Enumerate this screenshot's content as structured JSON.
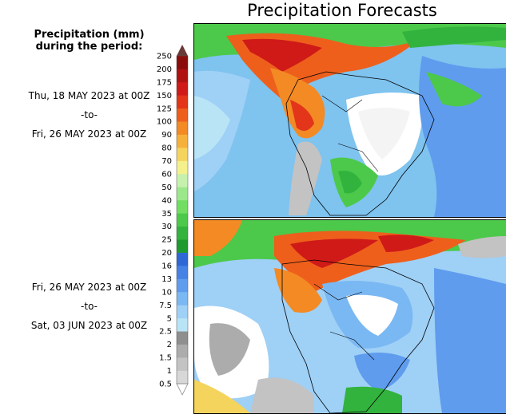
{
  "title": "Precipitation Forecasts",
  "colorbar": {
    "title_line1": "Precipitation (mm)",
    "title_line2": "during the period:",
    "levels": [
      "0.5",
      "1",
      "1.5",
      "2",
      "2.5",
      "5",
      "7.5",
      "10",
      "13",
      "16",
      "20",
      "25",
      "30",
      "35",
      "40",
      "50",
      "60",
      "70",
      "80",
      "90",
      "100",
      "125",
      "150",
      "175",
      "200",
      "250"
    ],
    "colors": [
      "#d7d7d7",
      "#c3c3c3",
      "#acacac",
      "#8f8f8f",
      "#b8e4f6",
      "#9fd0f6",
      "#7ab8f3",
      "#5f9cee",
      "#4682e4",
      "#2f67d6",
      "#1f9a2e",
      "#32b33d",
      "#4cc94a",
      "#71de62",
      "#9be88a",
      "#c6f1ad",
      "#f4f08b",
      "#f5d45d",
      "#f6b13a",
      "#f38a24",
      "#ee5f1c",
      "#e3351a",
      "#cf1a18",
      "#b01212",
      "#8c0c0c",
      "#6a3a38"
    ]
  },
  "periods": [
    {
      "start": "Thu, 18 MAY 2023 at 00Z",
      "sep": "-to-",
      "end": "Fri, 26 MAY 2023 at 00Z"
    },
    {
      "start": "Fri, 26 MAY 2023 at 00Z",
      "sep": "-to-",
      "end": "Sat, 03 JUN 2023 at 00Z"
    }
  ]
}
